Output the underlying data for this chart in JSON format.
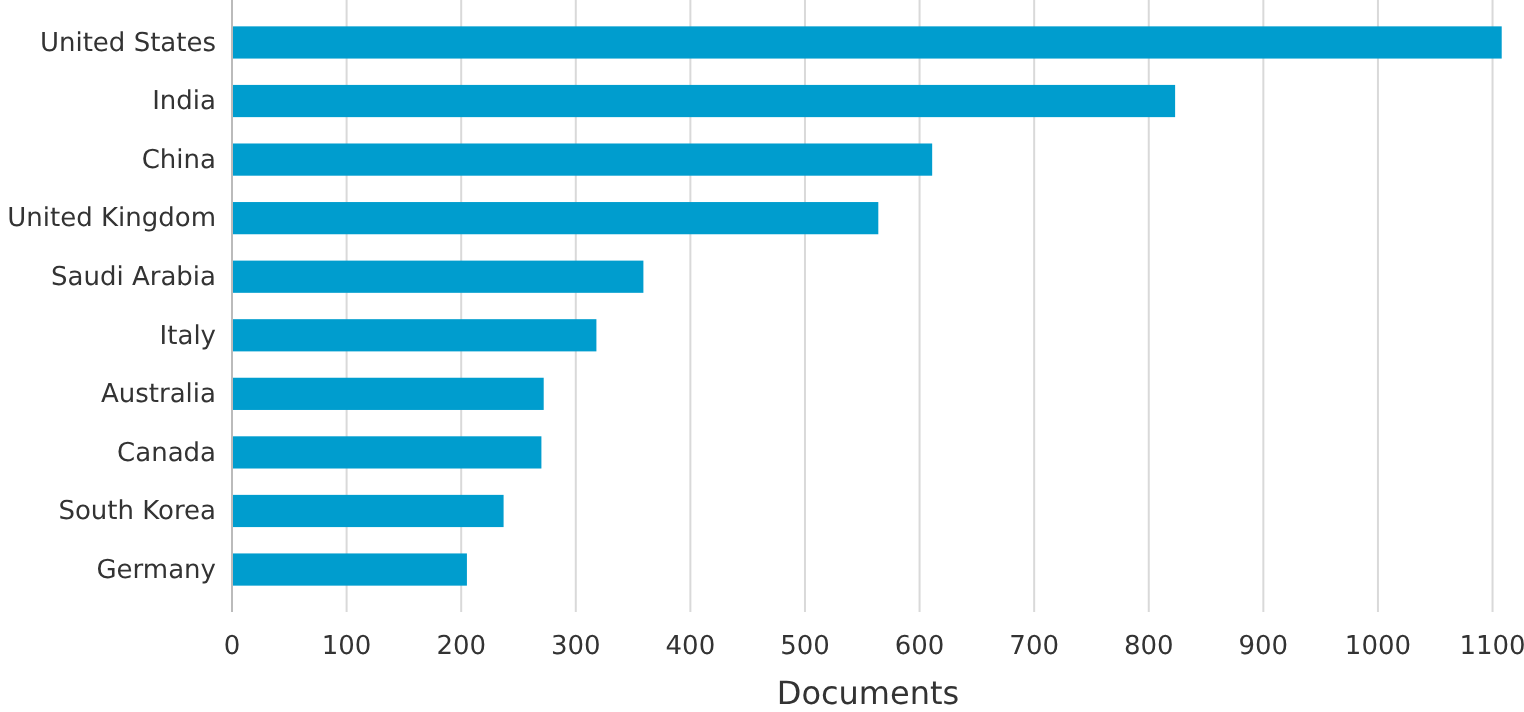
{
  "chart_data": {
    "type": "bar",
    "orientation": "horizontal",
    "xlabel": "Documents",
    "categories": [
      "United States",
      "India",
      "China",
      "United Kingdom",
      "Saudi Arabia",
      "Italy",
      "Australia",
      "Canada",
      "South Korea",
      "Germany"
    ],
    "values": [
      1108,
      823,
      611,
      564,
      359,
      318,
      272,
      270,
      237,
      205
    ],
    "color": "#009dce",
    "xlim": [
      0,
      1110
    ],
    "xticks": [
      0,
      100,
      200,
      300,
      400,
      500,
      600,
      700,
      800,
      900,
      1000,
      1100
    ],
    "grid": "x"
  }
}
